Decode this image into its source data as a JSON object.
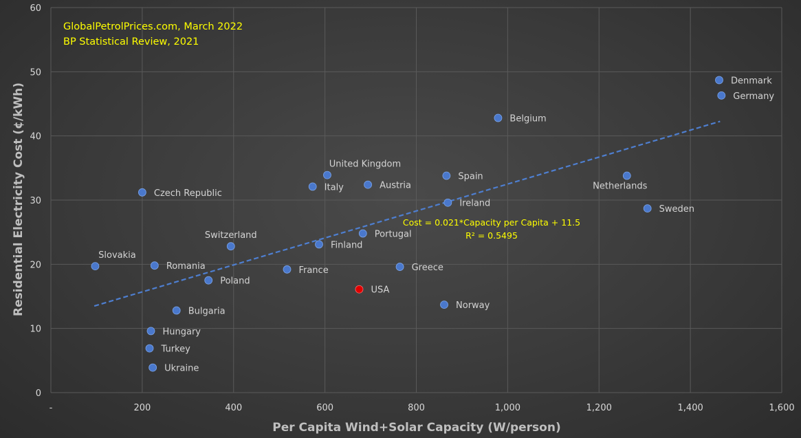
{
  "chart_data": {
    "type": "scatter",
    "title": "",
    "xlabel": "Per Capita Wind+Solar Capacity (W/person)",
    "ylabel": "Residential Electricity Cost (¢/kWh)",
    "xlim": [
      0,
      1600
    ],
    "ylim": [
      0,
      60
    ],
    "x_ticks": [
      "-",
      "200",
      "400",
      "600",
      "800",
      "1,000",
      "1,200",
      "1,400",
      "1,600"
    ],
    "y_ticks": [
      "0",
      "10",
      "20",
      "30",
      "40",
      "50",
      "60"
    ],
    "grid": true,
    "sources": [
      "GlobalPetrolPrices.com, March 2022",
      "BP Statistical Review, 2021"
    ],
    "trendline": {
      "slope": 0.021,
      "intercept": 11.5,
      "x_range": [
        95,
        1465
      ],
      "equation": "Cost = 0.021*Capacity per Capita + 11.5",
      "r2": "R² = 0.5495",
      "color": "#4e7fd1"
    },
    "series_color": "#4a78cc",
    "highlight_color": "#e00000",
    "points": [
      {
        "label": "Denmark",
        "x": 1463,
        "y": 48.7,
        "label_pos": "right"
      },
      {
        "label": "Germany",
        "x": 1468,
        "y": 46.3,
        "label_pos": "right"
      },
      {
        "label": "Belgium",
        "x": 979,
        "y": 42.8,
        "label_pos": "right"
      },
      {
        "label": "Netherlands",
        "x": 1261,
        "y": 33.8,
        "label_pos": "below"
      },
      {
        "label": "Sweden",
        "x": 1306,
        "y": 28.7,
        "label_pos": "right"
      },
      {
        "label": "Spain",
        "x": 866,
        "y": 33.8,
        "label_pos": "right"
      },
      {
        "label": "Ireland",
        "x": 869,
        "y": 29.6,
        "label_pos": "right"
      },
      {
        "label": "United Kingdom",
        "x": 605,
        "y": 33.9,
        "label_pos": "above"
      },
      {
        "label": "Italy",
        "x": 573,
        "y": 32.1,
        "label_pos": "right"
      },
      {
        "label": "Austria",
        "x": 694,
        "y": 32.4,
        "label_pos": "right"
      },
      {
        "label": "Czech Republic",
        "x": 200,
        "y": 31.2,
        "label_pos": "right"
      },
      {
        "label": "Portugal",
        "x": 683,
        "y": 24.8,
        "label_pos": "right"
      },
      {
        "label": "Finland",
        "x": 587,
        "y": 23.1,
        "label_pos": "right"
      },
      {
        "label": "Switzerland",
        "x": 394,
        "y": 22.8,
        "label_pos": "above"
      },
      {
        "label": "Greece",
        "x": 764,
        "y": 19.6,
        "label_pos": "right"
      },
      {
        "label": "France",
        "x": 517,
        "y": 19.2,
        "label_pos": "right"
      },
      {
        "label": "Slovakia",
        "x": 97,
        "y": 19.7,
        "label_pos": "above"
      },
      {
        "label": "Romania",
        "x": 227,
        "y": 19.8,
        "label_pos": "right"
      },
      {
        "label": "Poland",
        "x": 345,
        "y": 17.5,
        "label_pos": "right"
      },
      {
        "label": "USA",
        "x": 675,
        "y": 16.1,
        "label_pos": "right",
        "highlight": true
      },
      {
        "label": "Norway",
        "x": 861,
        "y": 13.7,
        "label_pos": "right"
      },
      {
        "label": "Bulgaria",
        "x": 275,
        "y": 12.8,
        "label_pos": "right"
      },
      {
        "label": "Hungary",
        "x": 219,
        "y": 9.6,
        "label_pos": "right"
      },
      {
        "label": "Turkey",
        "x": 216,
        "y": 6.9,
        "label_pos": "right"
      },
      {
        "label": "Ukraine",
        "x": 223,
        "y": 3.9,
        "label_pos": "right"
      }
    ]
  }
}
